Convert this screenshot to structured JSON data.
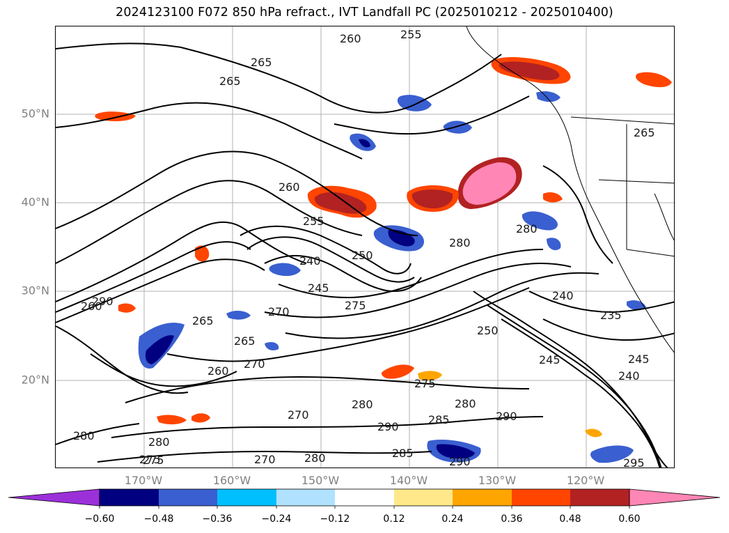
{
  "title": "2024123100 F072 850 hPa refract., IVT Landfall PC (2025010212 - 2025010400)",
  "lat_labels": [
    "50°N",
    "40°N",
    "30°N",
    "20°N"
  ],
  "lon_labels": [
    "170°W",
    "160°W",
    "150°W",
    "140°W",
    "130°W",
    "120°W"
  ],
  "colorbar": {
    "ticks": [
      "−0.60",
      "−0.48",
      "−0.36",
      "−0.24",
      "−0.12",
      "0.12",
      "0.24",
      "0.36",
      "0.48",
      "0.60"
    ],
    "colors": [
      "#9b30d9",
      "#000080",
      "#3a5fd0",
      "#00bfff",
      "#b0e2ff",
      "#ffffff",
      "#ffe88a",
      "#ffa500",
      "#ff4500",
      "#b22222",
      "#ff86b5"
    ]
  },
  "contour_labels": [
    "260",
    "255",
    "265",
    "265",
    "260",
    "255",
    "240",
    "250",
    "245",
    "270",
    "275",
    "280",
    "240",
    "235",
    "250",
    "245",
    "245",
    "240",
    "275",
    "280",
    "290",
    "285",
    "280",
    "290",
    "270",
    "280",
    "275",
    "270",
    "280",
    "290",
    "285",
    "265",
    "270",
    "265",
    "260",
    "295",
    "265",
    "280",
    "260",
    "280",
    "275",
    "290"
  ]
}
